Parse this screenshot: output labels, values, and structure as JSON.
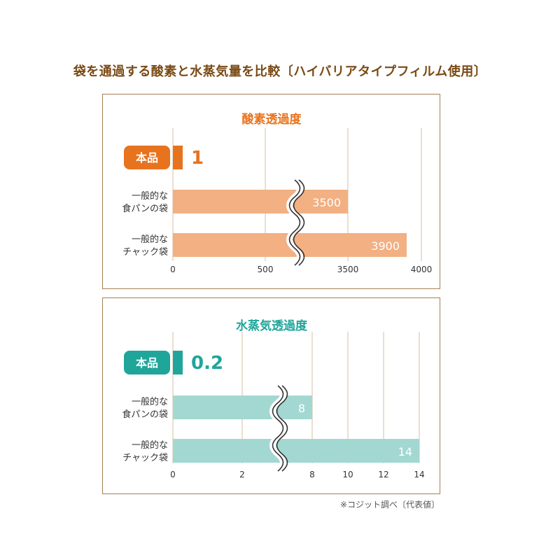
{
  "title": "袋を通過する酸素と水蒸気量を比較〔ハイバリアタイプフィルム使用〕",
  "footnote": "※コジット調べ〔代表値〕",
  "colors": {
    "title_text": "#7a4a14",
    "frame": "#a58056",
    "grid": "#dccab0",
    "oxygen_accent": "#e8731e",
    "oxygen_bar": "#f2b083",
    "vapor_accent": "#1fa59a",
    "vapor_bar": "#a3d8d2",
    "label_text": "#333333"
  },
  "chart_data": [
    {
      "type": "bar",
      "orientation": "horizontal",
      "title": "酸素透過度",
      "categories": [
        "本品",
        "一般的な\n食パンの袋",
        "一般的な\nチャック袋"
      ],
      "values": [
        1,
        3500,
        3900
      ],
      "value_labels": [
        "1",
        "3500",
        "3900"
      ],
      "x_ticks": [
        "0",
        "500",
        "3500",
        "4000"
      ],
      "x_tick_values": [
        0,
        500,
        3500,
        4000
      ],
      "axis_break": [
        500,
        3500
      ],
      "xlim": [
        0,
        4000
      ],
      "grid": true,
      "legend": "none"
    },
    {
      "type": "bar",
      "orientation": "horizontal",
      "title": "水蒸気透過度",
      "categories": [
        "本品",
        "一般的な\n食パンの袋",
        "一般的な\nチャック袋"
      ],
      "values": [
        0.2,
        8,
        14
      ],
      "value_labels": [
        "0.2",
        "8",
        "14"
      ],
      "x_ticks": [
        "0",
        "2",
        "8",
        "10",
        "12",
        "14"
      ],
      "x_tick_values": [
        0,
        2,
        8,
        10,
        12,
        14
      ],
      "axis_break": [
        2,
        8
      ],
      "xlim": [
        0,
        14
      ],
      "grid": true,
      "legend": "none"
    }
  ]
}
